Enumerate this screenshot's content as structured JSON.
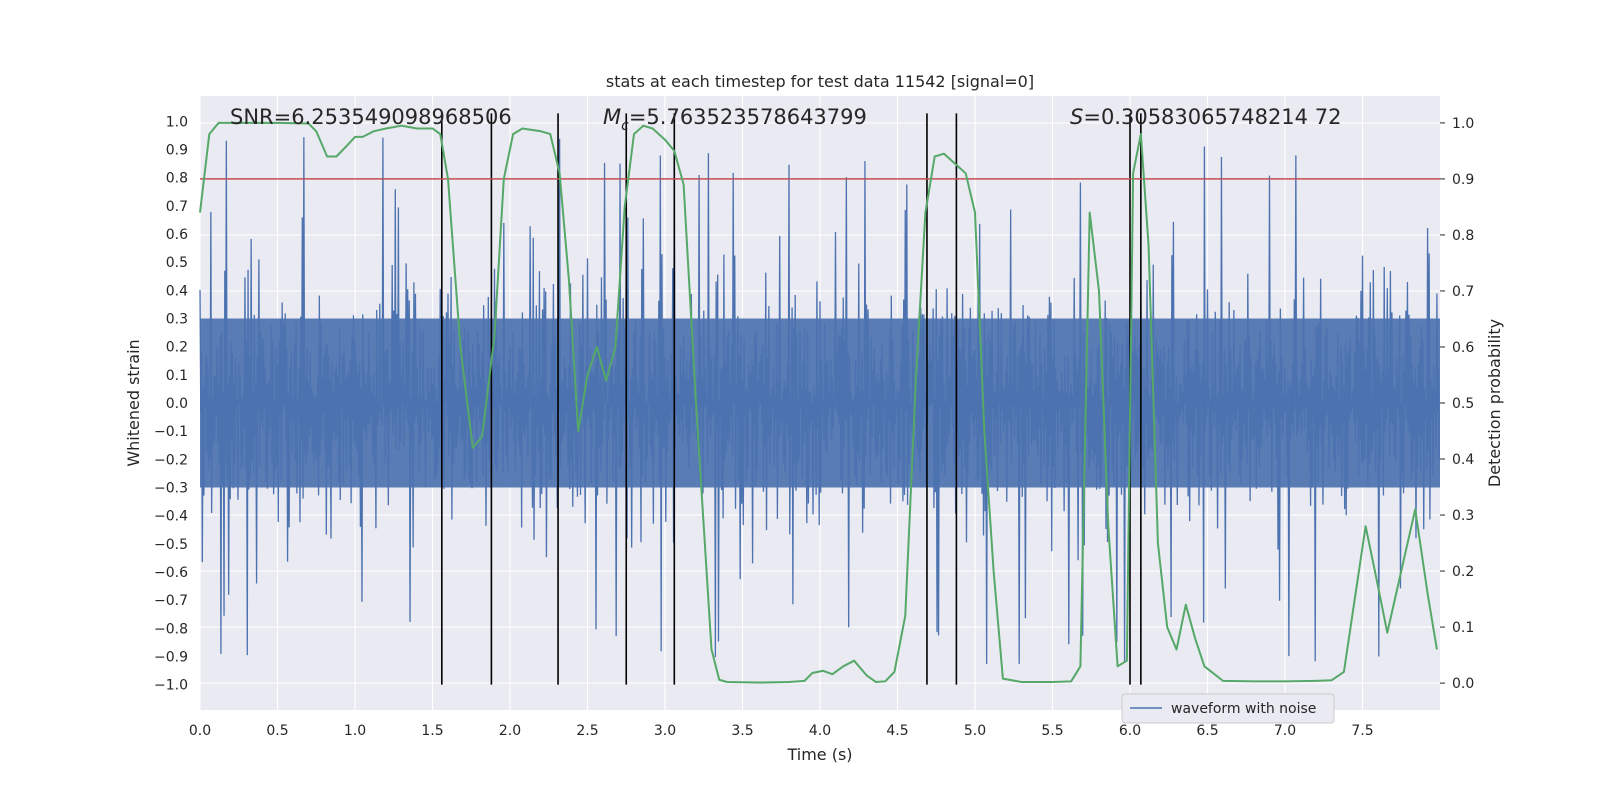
{
  "chart_data": {
    "type": "line",
    "title": "stats at each timestep for test data 11542 [signal=0]",
    "xlabel": "Time (s)",
    "ylabel": "Whitened strain",
    "y2label": "Detection probability",
    "xlim": [
      0.0,
      8.0
    ],
    "ylim": [
      -1.09,
      1.09
    ],
    "y2lim": [
      -0.048,
      1.048
    ],
    "xticks": [
      "0.0",
      "0.5",
      "1.0",
      "1.5",
      "2.0",
      "2.5",
      "3.0",
      "3.5",
      "4.0",
      "4.5",
      "5.0",
      "5.5",
      "6.0",
      "6.5",
      "7.0",
      "7.5"
    ],
    "yticks": [
      "1.0",
      "0.9",
      "0.8",
      "0.7",
      "0.6",
      "0.5",
      "0.4",
      "0.3",
      "0.2",
      "0.1",
      "0.0",
      "−0.1",
      "−0.2",
      "−0.3",
      "−0.4",
      "−0.5",
      "−0.6",
      "−0.7",
      "−0.8",
      "−0.9",
      "−1.0"
    ],
    "y2ticks": [
      "0.0",
      "0.1",
      "0.2",
      "0.3",
      "0.4",
      "0.5",
      "0.6",
      "0.7",
      "0.8",
      "0.9",
      "1.0"
    ],
    "grid": true,
    "legend_position": "bottom-right",
    "annotations": {
      "snr": "SNR=6.253549098968506",
      "mc_symbol": "M",
      "mc_sub": "c",
      "mc_value": "=5.763523578643799",
      "s_symbol": "S",
      "s_value": "=0.30583065748214 72"
    },
    "threshold": {
      "value": 0.9,
      "axis": "y2",
      "color": "#c44e52"
    },
    "vertical_lines": [
      1.56,
      1.88,
      2.31,
      2.75,
      3.06,
      4.69,
      4.88,
      6.0,
      6.07
    ],
    "series": [
      {
        "name": "waveform with noise",
        "axis": "y1",
        "color": "#4c72b0",
        "style": "noise",
        "amplitude_typical": 0.4,
        "amplitude_peak": 0.95,
        "samples": 1600
      },
      {
        "axis": "y2",
        "color": "#55a868",
        "x": [
          0.0,
          0.06,
          0.12,
          0.3,
          0.5,
          0.7,
          0.75,
          0.82,
          0.88,
          0.95,
          1.0,
          1.05,
          1.12,
          1.2,
          1.3,
          1.4,
          1.5,
          1.55,
          1.6,
          1.68,
          1.76,
          1.82,
          1.9,
          1.96,
          2.02,
          2.08,
          2.2,
          2.26,
          2.32,
          2.38,
          2.44,
          2.5,
          2.56,
          2.62,
          2.68,
          2.74,
          2.8,
          2.86,
          2.92,
          3.0,
          3.06,
          3.12,
          3.2,
          3.3,
          3.35,
          3.4,
          3.6,
          3.8,
          3.9,
          3.95,
          4.02,
          4.08,
          4.15,
          4.22,
          4.3,
          4.36,
          4.42,
          4.48,
          4.55,
          4.62,
          4.68,
          4.74,
          4.8,
          4.86,
          4.94,
          5.0,
          5.06,
          5.12,
          5.18,
          5.3,
          5.5,
          5.62,
          5.68,
          5.74,
          5.8,
          5.86,
          5.92,
          5.98,
          6.02,
          6.07,
          6.12,
          6.18,
          6.24,
          6.3,
          6.36,
          6.42,
          6.48,
          6.6,
          6.8,
          7.0,
          7.2,
          7.3,
          7.38,
          7.45,
          7.52,
          7.58,
          7.66,
          7.75,
          7.84,
          7.92,
          7.98
        ],
        "y": [
          0.84,
          0.98,
          1.0,
          1.0,
          1.0,
          0.999,
          0.985,
          0.94,
          0.94,
          0.96,
          0.975,
          0.975,
          0.985,
          0.99,
          0.995,
          0.99,
          0.99,
          0.98,
          0.9,
          0.6,
          0.42,
          0.44,
          0.62,
          0.9,
          0.98,
          0.99,
          0.985,
          0.98,
          0.91,
          0.72,
          0.45,
          0.55,
          0.6,
          0.54,
          0.6,
          0.85,
          0.98,
          0.995,
          0.99,
          0.97,
          0.95,
          0.89,
          0.5,
          0.06,
          0.006,
          0.002,
          0.001,
          0.002,
          0.004,
          0.018,
          0.022,
          0.016,
          0.03,
          0.04,
          0.014,
          0.002,
          0.003,
          0.02,
          0.12,
          0.55,
          0.84,
          0.94,
          0.945,
          0.93,
          0.91,
          0.84,
          0.45,
          0.2,
          0.008,
          0.002,
          0.002,
          0.003,
          0.03,
          0.84,
          0.7,
          0.28,
          0.03,
          0.04,
          0.91,
          0.98,
          0.78,
          0.25,
          0.1,
          0.06,
          0.14,
          0.08,
          0.03,
          0.004,
          0.003,
          0.003,
          0.004,
          0.005,
          0.02,
          0.15,
          0.28,
          0.2,
          0.09,
          0.2,
          0.31,
          0.16,
          0.06
        ]
      }
    ]
  }
}
